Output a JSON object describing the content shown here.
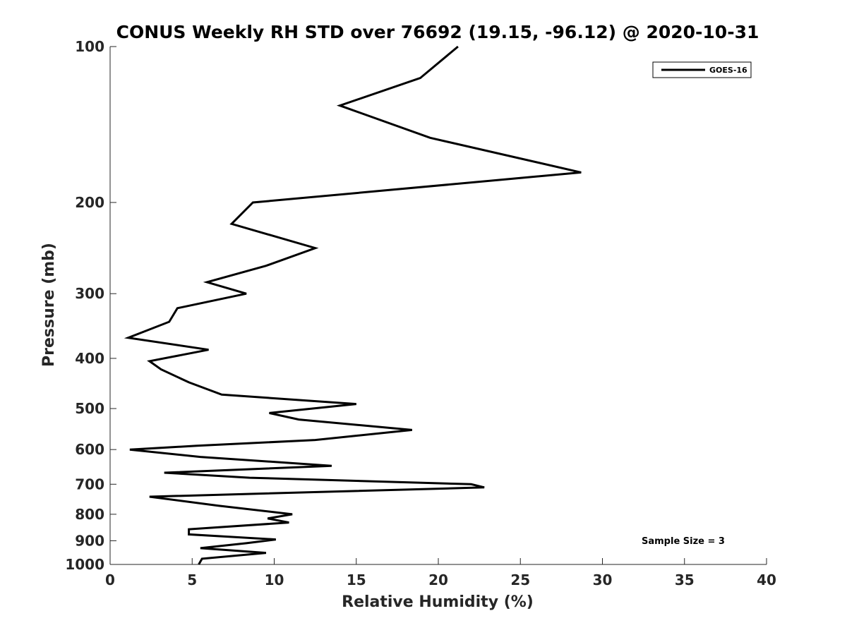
{
  "chart_data": {
    "type": "line",
    "title": "CONUS Weekly RH STD over 76692 (19.15, -96.12) @ 2020-10-31",
    "xlabel": "Relative Humidity (%)",
    "ylabel": "Pressure (mb)",
    "xlim": [
      0,
      40
    ],
    "ylim": [
      100,
      1000
    ],
    "y_scale": "log",
    "y_reversed": true,
    "x_ticks": [
      "0",
      "5",
      "10",
      "15",
      "20",
      "25",
      "30",
      "35",
      "40"
    ],
    "y_ticks": [
      "100",
      "200",
      "300",
      "400",
      "500",
      "600",
      "700",
      "800",
      "900",
      "1000"
    ],
    "grid": false,
    "legend_position": "top-right",
    "annotation": "Sample Size = 3",
    "line_color": "#000000",
    "series": [
      {
        "name": "GOES-16",
        "x": [
          21.2,
          18.9,
          14.0,
          19.5,
          28.7,
          8.7,
          7.4,
          12.5,
          9.5,
          5.9,
          8.3,
          4.1,
          3.6,
          1.1,
          6.0,
          2.4,
          3.1,
          4.8,
          6.8,
          15.0,
          9.7,
          11.5,
          18.4,
          12.5,
          5.3,
          1.2,
          5.5,
          13.5,
          3.3,
          8.5,
          22.0,
          22.8,
          2.4,
          6.6,
          11.1,
          9.6,
          10.9,
          4.8,
          4.8,
          10.1,
          8.3,
          5.5,
          9.5,
          5.6,
          5.4
        ],
        "y": [
          100,
          115,
          130,
          150,
          175,
          200,
          220,
          245,
          265,
          285,
          300,
          320,
          340,
          365,
          385,
          405,
          420,
          445,
          470,
          490,
          510,
          525,
          550,
          575,
          590,
          600,
          620,
          645,
          665,
          680,
          700,
          710,
          740,
          770,
          800,
          815,
          830,
          855,
          875,
          895,
          910,
          930,
          950,
          975,
          1000
        ]
      }
    ]
  }
}
